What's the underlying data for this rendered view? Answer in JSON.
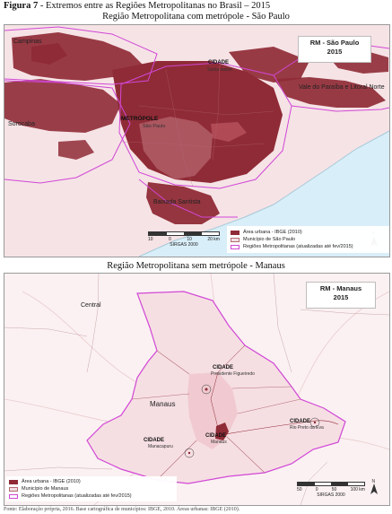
{
  "figure": {
    "label": "Figura 7",
    "caption": " - Extremos entre as Regiões Metropolitanas no Brasil – 2015"
  },
  "map1": {
    "title": "Região Metropolitana com metrópole - São Paulo",
    "box_line1": "RM - São Paulo",
    "box_line2": "2015",
    "places": {
      "campinas": "Campinas",
      "sorocaba": "Sorocaba",
      "vale": "Vale do Paraíba e Litoral Norte",
      "metropole": "METRÓPOLE",
      "sao_paulo": "São Paulo",
      "cidade": "CIDADE",
      "santa_isabel": "Santa Isabel",
      "baixada": "Baixada Santista"
    },
    "legend": [
      {
        "label": "Área urbana - IBGE (2010)",
        "color": "#8f2b36"
      },
      {
        "label": "Município de São Paulo",
        "color": "#f3dde0"
      },
      {
        "label": "Regiões Metropolitanas (atualizadas até fev/2015)",
        "color": "#d147d6"
      }
    ],
    "scale": {
      "ticks": [
        "10",
        "0",
        "10",
        "20 km"
      ],
      "datum": "SIRGAS 2000"
    }
  },
  "map2": {
    "title": "Região Metropolitana sem metrópole - Manaus",
    "box_line1": "RM - Manaus",
    "box_line2": "2015",
    "places": {
      "central": "Central",
      "manaus": "Manaus",
      "cidade_pf": "CIDADE",
      "presidente_figueiredo": "Presidente Figueiredo",
      "cidade_ma": "CIDADE",
      "manacapuru": "Manacapuru",
      "cidade_manaus": "CIDADE",
      "manaus_small": "Manaus",
      "cidade_rp": "CIDADE",
      "rio_preto": "Rio Preto da Eva"
    },
    "legend": [
      {
        "label": "Área urbana - IBGE (2010)",
        "color": "#8f2b36"
      },
      {
        "label": "Município de Manaus",
        "color": "#f3dde0"
      },
      {
        "label": "Regiões Metropolitanas (atualizadas até fev/2015)",
        "color": "#d147d6"
      }
    ],
    "scale": {
      "ticks": [
        "50",
        "0",
        "50",
        "100 km"
      ],
      "datum": "SIRGAS 2000"
    }
  },
  "footer": "Fonte: Elaboração própria, 2016. Base cartográfica de municípios: IBGE, 2010. Áreas urbanas: IBGE (2010)."
}
